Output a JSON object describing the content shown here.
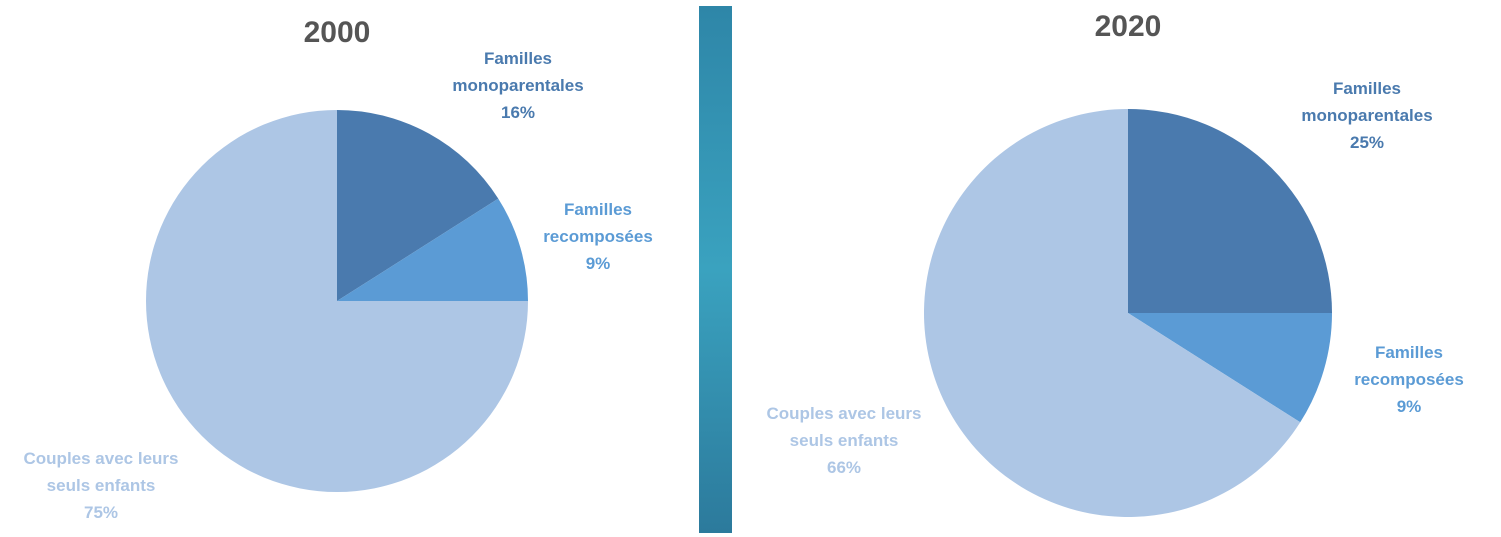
{
  "colors": {
    "monoparentales": "#4a7aae",
    "recomposees": "#5b9bd5",
    "couples": "#adc6e5",
    "label_mono": "#4a7aae",
    "label_reco": "#5b9bd5",
    "label_couples": "#adc6e5",
    "divider_top": "#2e86a8",
    "divider_mid": "#3aa2bf",
    "divider_bottom": "#2c7a9c"
  },
  "chart_data": [
    {
      "type": "pie",
      "title": "2000",
      "slices": [
        {
          "key": "monoparentales",
          "lines": [
            "Familles",
            "monoparentales",
            "16%"
          ],
          "value": 16
        },
        {
          "key": "recomposees",
          "lines": [
            "Familles",
            "recomposées",
            "9%"
          ],
          "value": 9
        },
        {
          "key": "couples",
          "lines": [
            "Couples avec leurs",
            "seuls enfants",
            "75%"
          ],
          "value": 75
        }
      ]
    },
    {
      "type": "pie",
      "title": "2020",
      "slices": [
        {
          "key": "monoparentales",
          "lines": [
            "Familles",
            "monoparentales",
            "25%"
          ],
          "value": 25
        },
        {
          "key": "recomposees",
          "lines": [
            "Familles",
            "recomposées",
            "9%"
          ],
          "value": 9
        },
        {
          "key": "couples",
          "lines": [
            "Couples avec leurs",
            "seuls enfants",
            "66%"
          ],
          "value": 66
        }
      ]
    }
  ]
}
